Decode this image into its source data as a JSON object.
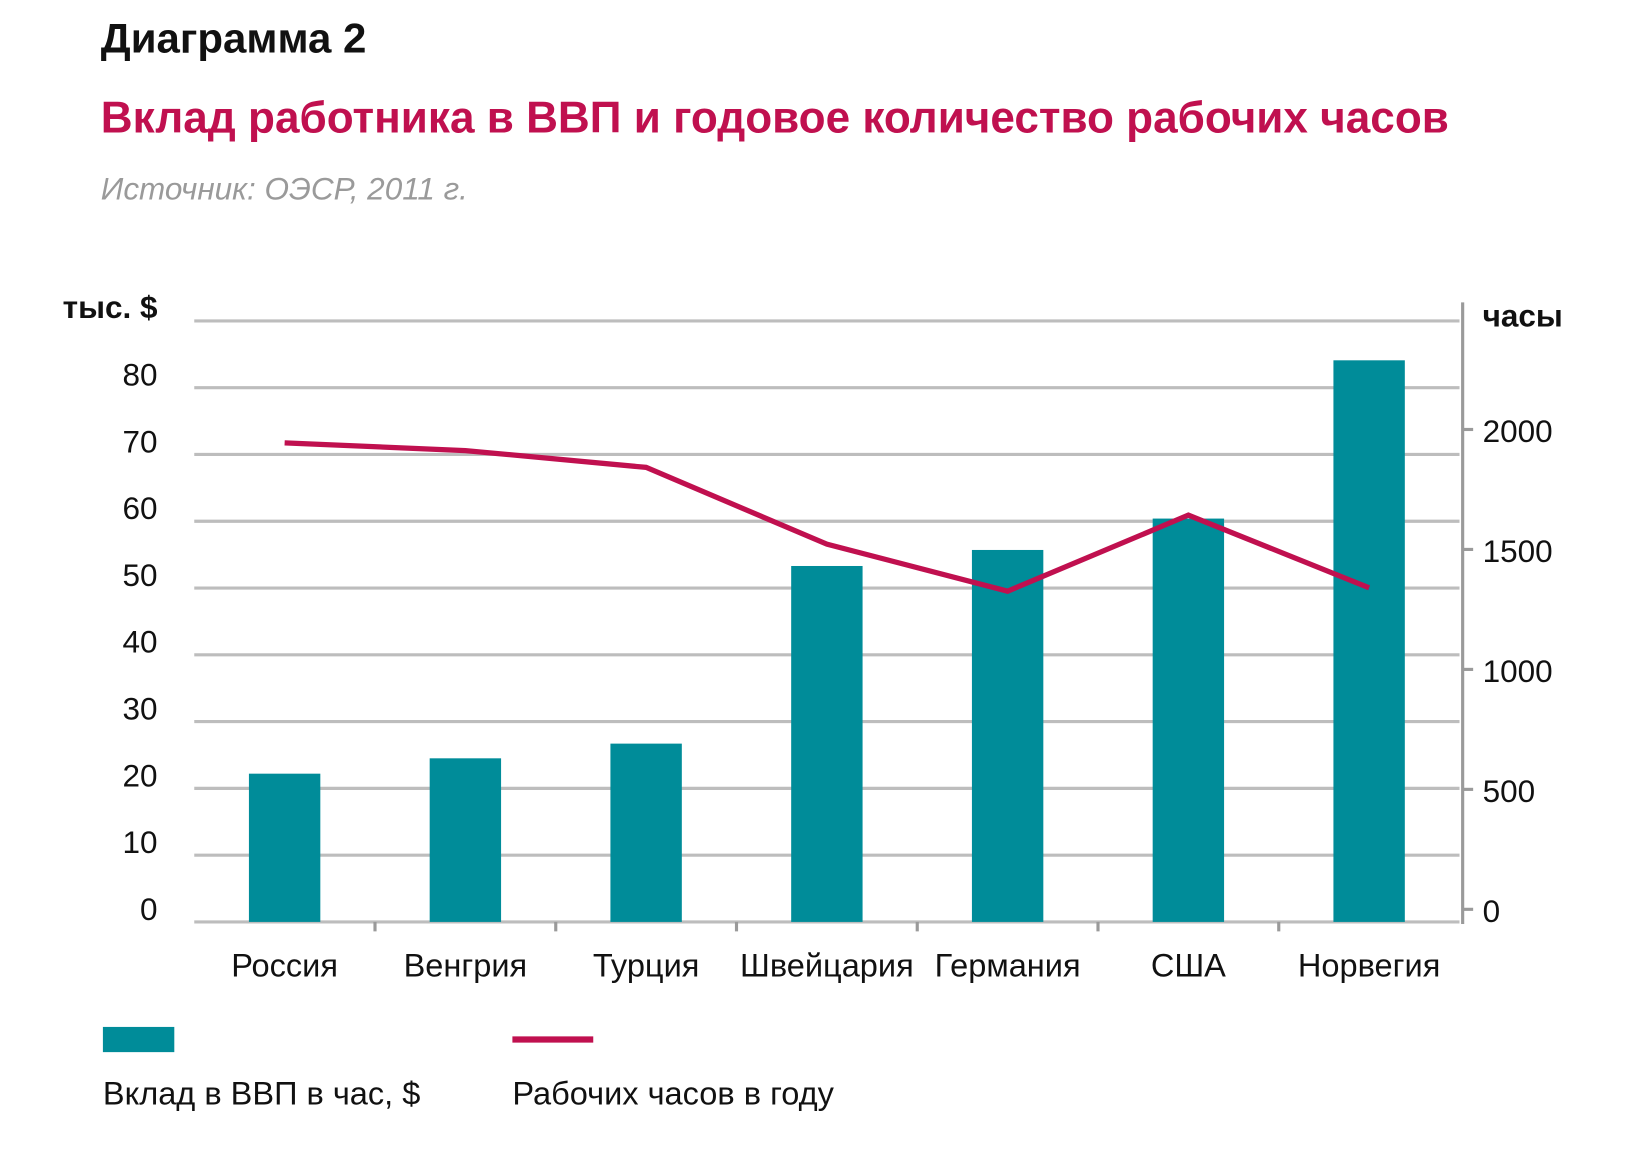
{
  "header": {
    "label": "Диаграмма 2",
    "title": "Вклад работника в ВВП и годовое количество рабочих часов",
    "source": "Источник: ОЭСР, 2011 г."
  },
  "colors": {
    "bar": "#008c99",
    "line": "#c0104f",
    "title": "#c0104f",
    "source": "#9a9a9a",
    "grid": "#bdbdbd"
  },
  "chart_data": {
    "type": "bar",
    "title": "Вклад работника в ВВП и годовое количество рабочих часов",
    "categories": [
      "Россия",
      "Венгрия",
      "Турция",
      "Швейцария",
      "Германия",
      "США",
      "Норвегия"
    ],
    "series": [
      {
        "name": "Вклад в ВВП в час, $",
        "type": "bar",
        "axis": "left",
        "values": [
          22.2,
          24.5,
          26.7,
          53.3,
          55.7,
          60.4,
          84.1
        ]
      },
      {
        "name": "Рабочих часов в году",
        "type": "line",
        "axis": "right",
        "values": [
          1944,
          1912,
          1842,
          1522,
          1326,
          1643,
          1340
        ]
      }
    ],
    "ylabel": "тыс. $",
    "y2label": "часы",
    "ylim": [
      0,
      90
    ],
    "y2lim": [
      0,
      2000
    ],
    "yticks": [
      "0",
      "10",
      "20",
      "30",
      "40",
      "50",
      "60",
      "70",
      "80"
    ],
    "y2ticks": [
      "0",
      "500",
      "1000",
      "1500",
      "2000"
    ],
    "grid": true,
    "legend": "bottom-left"
  }
}
